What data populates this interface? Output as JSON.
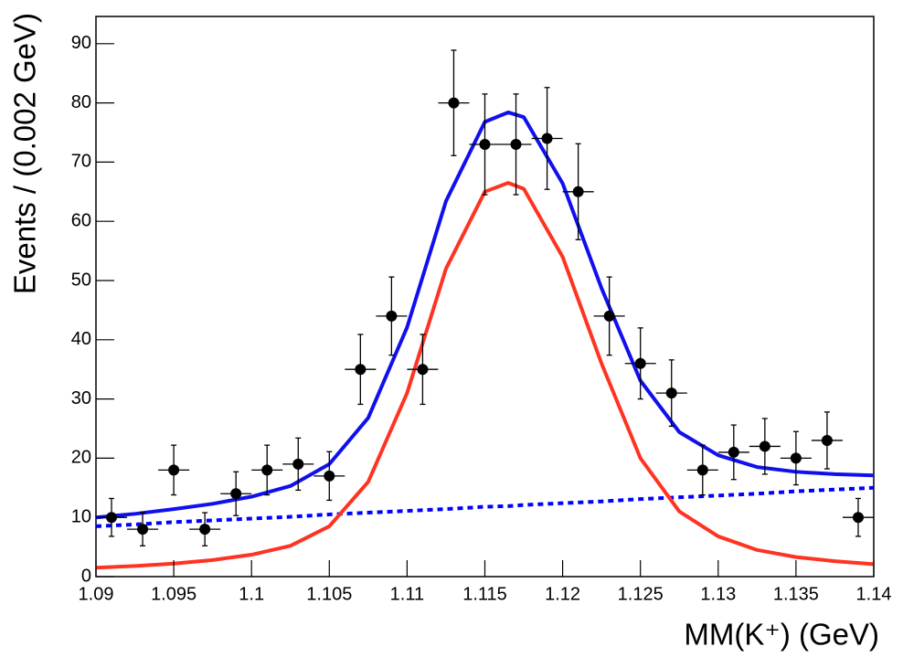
{
  "chart_data": {
    "type": "errorbar",
    "xlabel": "MM(K⁺) (GeV)",
    "ylabel": "Events / (0.002 GeV)",
    "x": [
      1.091,
      1.093,
      1.095,
      1.097,
      1.099,
      1.101,
      1.103,
      1.105,
      1.107,
      1.109,
      1.111,
      1.113,
      1.115,
      1.117,
      1.119,
      1.121,
      1.123,
      1.125,
      1.127,
      1.129,
      1.131,
      1.133,
      1.135,
      1.137,
      1.139
    ],
    "values": [
      10,
      8,
      18,
      8,
      14,
      18,
      19,
      17,
      35,
      44,
      35,
      80,
      73,
      73,
      74,
      65,
      44,
      36,
      31,
      18,
      21,
      22,
      20,
      23,
      10
    ],
    "errors": [
      3.2,
      2.8,
      4.2,
      2.8,
      3.7,
      4.2,
      4.4,
      4.1,
      5.9,
      6.6,
      5.9,
      8.9,
      8.5,
      8.5,
      8.6,
      8.1,
      6.6,
      6.0,
      5.6,
      4.2,
      4.6,
      4.7,
      4.5,
      4.8,
      3.2
    ],
    "xerr": 0.001,
    "marker_color": "#000000",
    "curves": [
      {
        "color": "#0000ff",
        "dashed": true,
        "x": [
          1.09,
          1.0925,
          1.095,
          1.0975,
          1.1,
          1.1025,
          1.105,
          1.1075,
          1.11,
          1.1125,
          1.115,
          1.1165,
          1.1175,
          1.12,
          1.1225,
          1.125,
          1.1275,
          1.13,
          1.1325,
          1.135,
          1.1375,
          1.14
        ],
        "values": [
          8.5,
          8.8,
          9.2,
          9.5,
          9.8,
          10.1,
          10.5,
          10.8,
          11.1,
          11.4,
          11.8,
          11.9,
          12.1,
          12.4,
          12.7,
          13.1,
          13.4,
          13.7,
          14.0,
          14.4,
          14.7,
          15.0
        ]
      },
      {
        "color": "#ff3322",
        "dashed": false,
        "x": [
          1.09,
          1.0925,
          1.095,
          1.0975,
          1.1,
          1.1025,
          1.105,
          1.1075,
          1.11,
          1.1125,
          1.115,
          1.1165,
          1.1175,
          1.12,
          1.1225,
          1.125,
          1.1275,
          1.13,
          1.1325,
          1.135,
          1.1375,
          1.14
        ],
        "values": [
          1.5,
          1.8,
          2.2,
          2.8,
          3.7,
          5.2,
          8.5,
          16,
          31,
          52,
          65,
          66.5,
          65.5,
          54,
          36,
          20,
          11,
          6.8,
          4.5,
          3.3,
          2.6,
          2.1
        ]
      },
      {
        "color": "#1010ee",
        "dashed": false,
        "x": [
          1.09,
          1.0925,
          1.095,
          1.0975,
          1.1,
          1.1025,
          1.105,
          1.1075,
          1.11,
          1.1125,
          1.115,
          1.1165,
          1.1175,
          1.12,
          1.1225,
          1.125,
          1.1275,
          1.13,
          1.1325,
          1.135,
          1.1375,
          1.14
        ],
        "values": [
          10.0,
          10.6,
          11.4,
          12.3,
          13.5,
          15.3,
          19.0,
          26.8,
          42.1,
          63.4,
          76.8,
          78.4,
          77.6,
          66.4,
          48.7,
          33.1,
          24.4,
          20.5,
          18.5,
          17.7,
          17.3,
          17.1
        ]
      }
    ],
    "xlim": [
      1.09,
      1.14
    ],
    "ylim": [
      0,
      94.6
    ],
    "xticks": [
      1.09,
      1.095,
      1.1,
      1.105,
      1.11,
      1.115,
      1.12,
      1.125,
      1.13,
      1.135,
      1.14
    ],
    "yticks": [
      0,
      10,
      20,
      30,
      40,
      50,
      60,
      70,
      80,
      90
    ]
  }
}
